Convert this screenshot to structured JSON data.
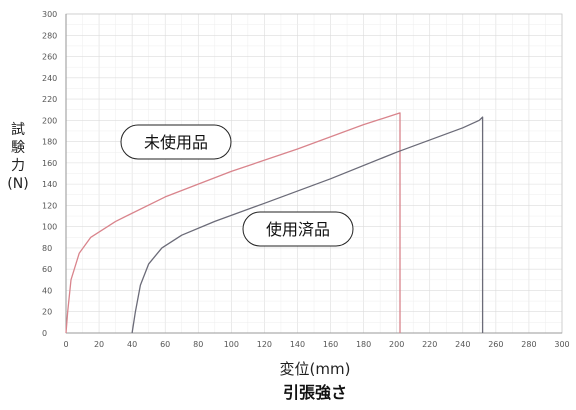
{
  "chart_data": {
    "type": "line",
    "title": "引張強さ",
    "xlabel": "変位(mm)",
    "ylabel": [
      "試",
      "験",
      "力",
      "(N)"
    ],
    "xlim": [
      0,
      300
    ],
    "ylim": [
      0,
      300
    ],
    "x_ticks": [
      "0",
      "20",
      "40",
      "60",
      "80",
      "100",
      "120",
      "140",
      "160",
      "180",
      "200",
      "220",
      "240",
      "260",
      "280",
      "300"
    ],
    "y_ticks": [
      "0",
      "20",
      "40",
      "60",
      "80",
      "100",
      "120",
      "140",
      "160",
      "180",
      "200",
      "220",
      "240",
      "260",
      "280",
      "300"
    ],
    "grid": true,
    "series": [
      {
        "name": "未使用品",
        "color": "#d9848c",
        "points": [
          [
            0,
            0
          ],
          [
            1,
            20
          ],
          [
            3,
            50
          ],
          [
            8,
            75
          ],
          [
            15,
            90
          ],
          [
            30,
            105
          ],
          [
            60,
            128
          ],
          [
            100,
            152
          ],
          [
            140,
            173
          ],
          [
            180,
            196
          ],
          [
            202,
            207
          ],
          [
            202,
            0
          ]
        ]
      },
      {
        "name": "使用済品",
        "color": "#6b6b78",
        "points": [
          [
            40,
            0
          ],
          [
            42,
            20
          ],
          [
            45,
            45
          ],
          [
            50,
            65
          ],
          [
            58,
            80
          ],
          [
            70,
            92
          ],
          [
            90,
            105
          ],
          [
            120,
            122
          ],
          [
            160,
            145
          ],
          [
            200,
            170
          ],
          [
            240,
            193
          ],
          [
            250,
            200
          ],
          [
            252,
            203
          ],
          [
            252,
            0
          ]
        ]
      }
    ],
    "annotations": [
      {
        "text": "未使用品",
        "series": "未使用品"
      },
      {
        "text": "使用済品",
        "series": "使用済品"
      }
    ]
  }
}
